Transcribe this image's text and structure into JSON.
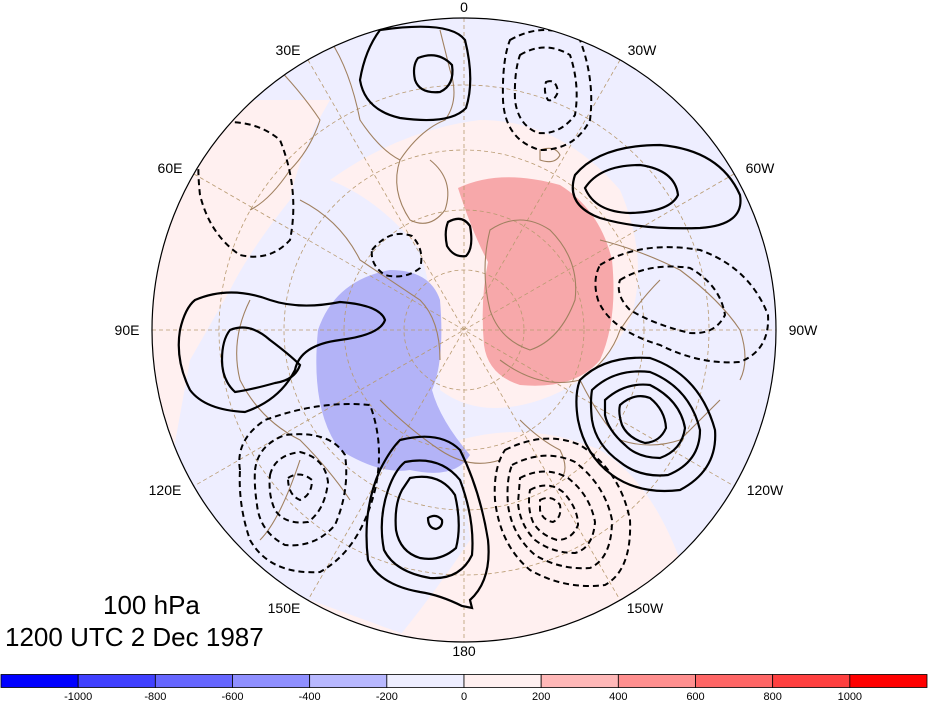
{
  "map": {
    "projection": "north-polar-stereographic",
    "longitude_labels": {
      "top": "0",
      "top_right_1": "30W",
      "right_1": "60W",
      "right": "90W",
      "right_2": "120W",
      "bottom_right": "150W",
      "bottom": "180",
      "bottom_left": "150E",
      "left_2": "120E",
      "left": "90E",
      "left_1": "60E",
      "top_left_1": "30E"
    },
    "contour_style": {
      "positive": "solid",
      "negative": "dashed",
      "color": "#000000"
    },
    "coastline_color": "#a08060",
    "gridline_color": "#b89a70"
  },
  "captions": {
    "level": "100 hPa",
    "time": "1200 UTC 2 Dec 1987"
  },
  "colorbar": {
    "colors": [
      "#0000ff",
      "#4040ff",
      "#6666ff",
      "#8f8fff",
      "#b8b8ff",
      "#eeeeff",
      "#fff0f0",
      "#ffb8b8",
      "#ff8f8f",
      "#ff6666",
      "#ff4040",
      "#ff0000"
    ],
    "tick_labels": [
      "-1000",
      "-800",
      "-600",
      "-400",
      "-200",
      "0",
      "200",
      "400",
      "600",
      "800",
      "1000"
    ]
  }
}
